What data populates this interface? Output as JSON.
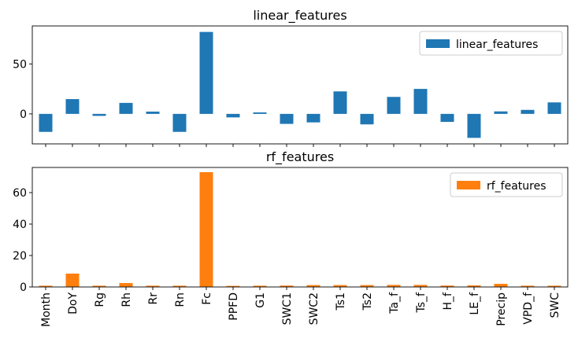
{
  "chart_data": [
    {
      "type": "bar",
      "title": "linear_features",
      "legend": {
        "entries": [
          "linear_features"
        ],
        "placement": "top-right"
      },
      "categories": [
        "Month",
        "DoY",
        "Rg",
        "Rh",
        "Rr",
        "Rn",
        "Fc",
        "PPFD",
        "G1",
        "SWC1",
        "SWC2",
        "Ts1",
        "Ts2",
        "Ta_f",
        "Ts_f",
        "H_f",
        "LE_f",
        "Precip",
        "VPD_f",
        "SWC"
      ],
      "series": [
        {
          "name": "linear_features",
          "color": "#1f77b4",
          "values": [
            -18,
            14.8,
            -2,
            11,
            2.3,
            -18,
            82,
            -3.5,
            1.5,
            -10,
            -8.5,
            22.5,
            -10.5,
            17,
            25,
            -8,
            -24,
            2.5,
            4,
            11.5
          ]
        }
      ],
      "ylim": [
        -30,
        88
      ],
      "yticks": [
        0,
        50
      ],
      "xlabel": "",
      "ylabel": "",
      "grid": false
    },
    {
      "type": "bar",
      "title": "rf_features",
      "legend": {
        "entries": [
          "rf_features"
        ],
        "placement": "top-right"
      },
      "categories": [
        "Month",
        "DoY",
        "Rg",
        "Rh",
        "Rr",
        "Rn",
        "Fc",
        "PPFD",
        "G1",
        "SWC1",
        "SWC2",
        "Ts1",
        "Ts2",
        "Ta_f",
        "Ts_f",
        "H_f",
        "LE_f",
        "Precip",
        "VPD_f",
        "SWC"
      ],
      "series": [
        {
          "name": "rf_features",
          "color": "#ff7f0e",
          "values": [
            0.8,
            8.5,
            0.8,
            2.5,
            0.8,
            0.8,
            73,
            0.7,
            0.8,
            0.9,
            1.2,
            1.2,
            1.2,
            1.3,
            1.3,
            0.9,
            1,
            2,
            0.8,
            0.8
          ]
        }
      ],
      "ylim": [
        0,
        76
      ],
      "yticks": [
        0,
        20,
        40,
        60
      ],
      "xlabel": "",
      "ylabel": "",
      "grid": false
    }
  ]
}
